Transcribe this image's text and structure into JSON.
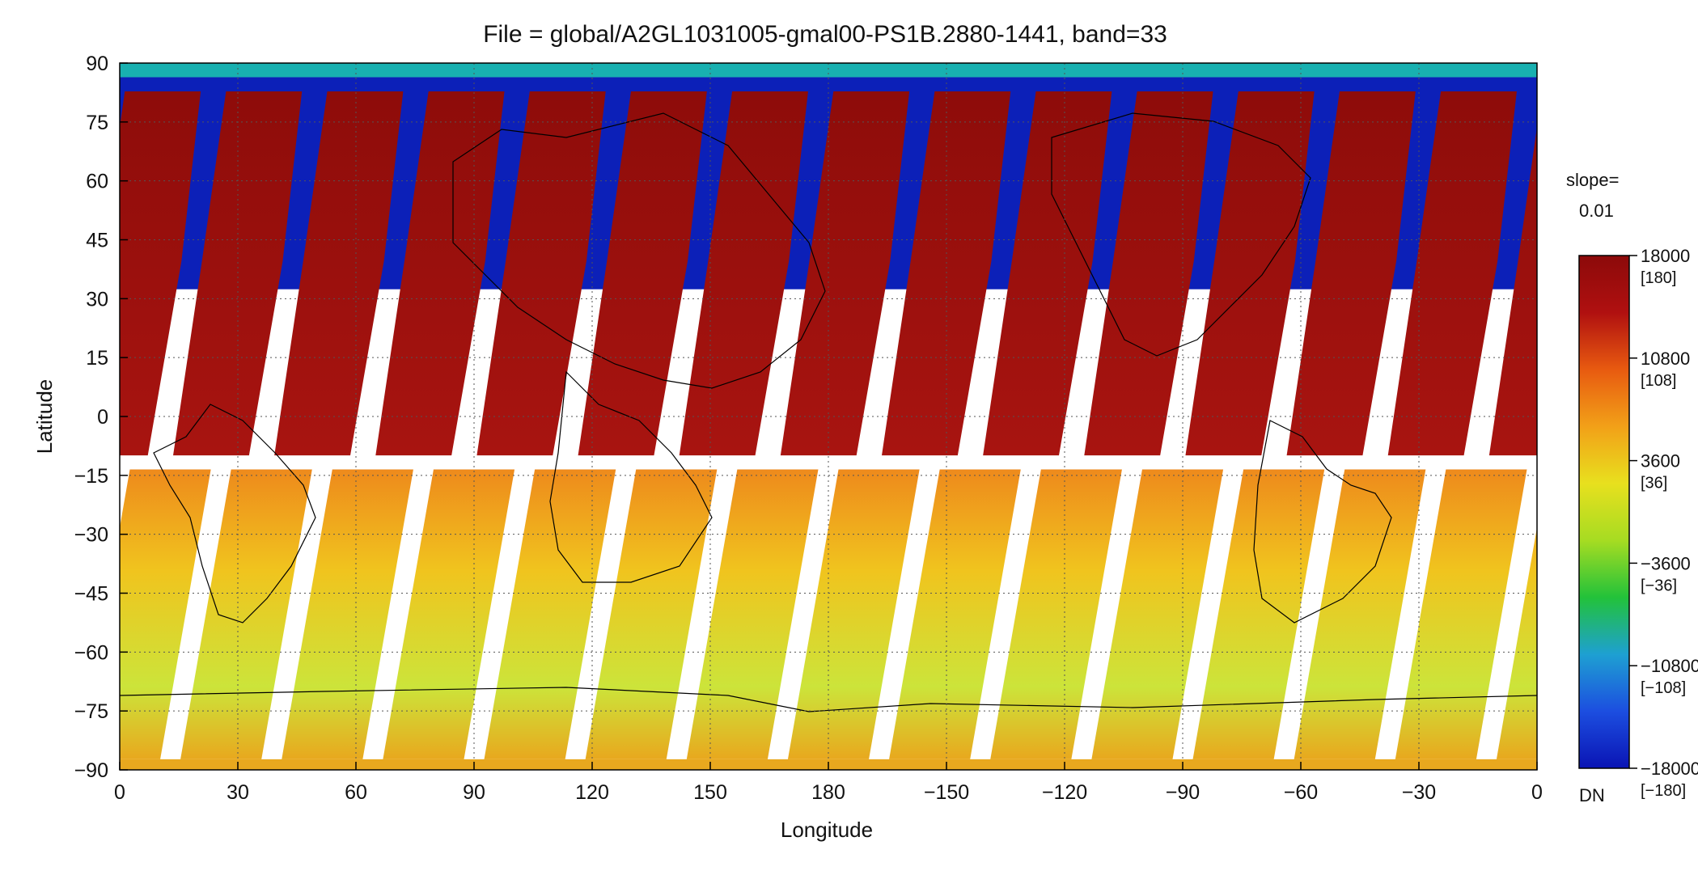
{
  "title": "File = global/A2GL1031005-gmal00-PS1B.2880-1441, band=33",
  "xlabel": "Longitude",
  "ylabel": "Latitude",
  "x_ticks": [
    "0",
    "30",
    "60",
    "90",
    "120",
    "150",
    "180",
    "−150",
    "−120",
    "−90",
    "−60",
    "−30",
    "0"
  ],
  "y_ticks": [
    "90",
    "75",
    "60",
    "45",
    "30",
    "15",
    "0",
    "−15",
    "−30",
    "−45",
    "−60",
    "−75",
    "−90"
  ],
  "grid": true,
  "colorbar": {
    "slope_label": "slope=",
    "slope_value": "0.01",
    "unit_label": "DN",
    "range": [
      -18000,
      18000
    ],
    "ticks": [
      {
        "value": 18000,
        "label": "18000",
        "sub": "[180]"
      },
      {
        "value": 10800,
        "label": "10800",
        "sub": "[108]"
      },
      {
        "value": 3600,
        "label": "3600",
        "sub": "[36]"
      },
      {
        "value": -3600,
        "label": "−3600",
        "sub": "[−36]"
      },
      {
        "value": -10800,
        "label": "−10800",
        "sub": "[−108]"
      },
      {
        "value": -18000,
        "label": "−18000",
        "sub": "[−180]"
      }
    ],
    "colors": [
      "#0a14b4",
      "#1c4ee0",
      "#1ea0d2",
      "#22c23a",
      "#a6dc22",
      "#e8e01e",
      "#f2a018",
      "#e85a10",
      "#b01010",
      "#8c0a0a"
    ]
  },
  "swath_colors": {
    "north": "#a81410",
    "north_dark": "#8e0c0a",
    "polar_blue": "#0c20b8",
    "polar_cap": "#18b0b0",
    "south_top": "#ee8a1c",
    "south_mid": "#f0c41e",
    "south_low": "#cce43a",
    "south_edge": "#e8a81e"
  }
}
